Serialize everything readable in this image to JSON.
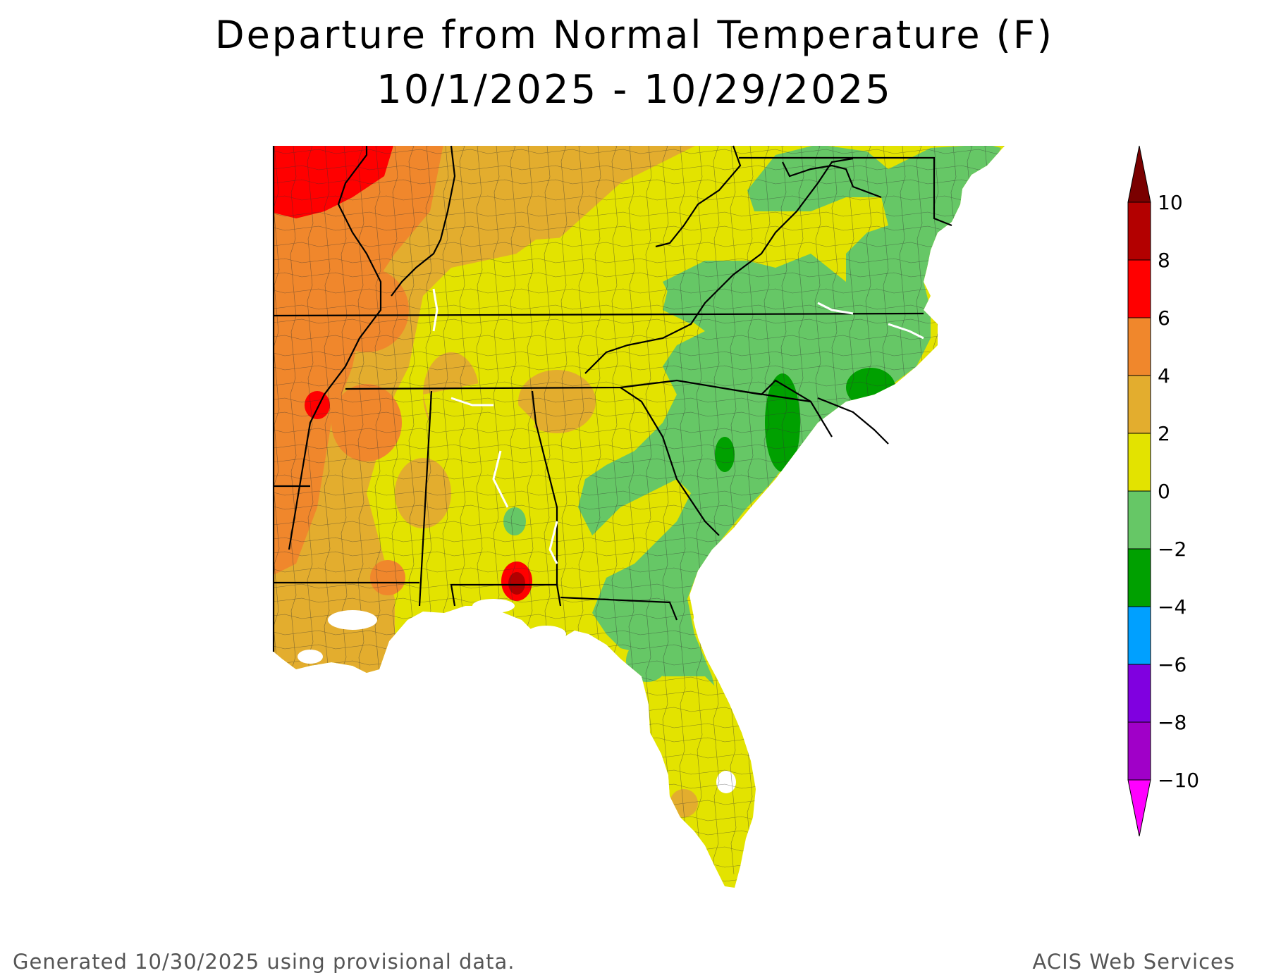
{
  "title": "Departure from Normal Temperature (F)",
  "subtitle": "10/1/2025 - 10/29/2025",
  "legend": {
    "bins": [
      {
        "min": 8,
        "max": 10,
        "color": "#b30000"
      },
      {
        "min": 6,
        "max": 8,
        "color": "#ff0000"
      },
      {
        "min": 4,
        "max": 6,
        "color": "#f0872c"
      },
      {
        "min": 2,
        "max": 4,
        "color": "#e3ad2e"
      },
      {
        "min": 0,
        "max": 2,
        "color": "#e3e300"
      },
      {
        "min": -2,
        "max": 0,
        "color": "#66c766"
      },
      {
        "min": -4,
        "max": -2,
        "color": "#00a000"
      },
      {
        "min": -6,
        "max": -4,
        "color": "#00a0ff"
      },
      {
        "min": -8,
        "max": -6,
        "color": "#8000e0"
      },
      {
        "min": -10,
        "max": -8,
        "color": "#a000c8"
      }
    ],
    "top_arrow_color": "#7a0000",
    "bottom_arrow_color": "#ff00ff",
    "tick_labels": [
      "10",
      "8",
      "6",
      "4",
      "2",
      "0",
      "−2",
      "−4",
      "−6",
      "−8",
      "−10"
    ]
  },
  "footer": {
    "left": "Generated 10/30/2025 using provisional data.",
    "right": "ACIS Web Services"
  }
}
